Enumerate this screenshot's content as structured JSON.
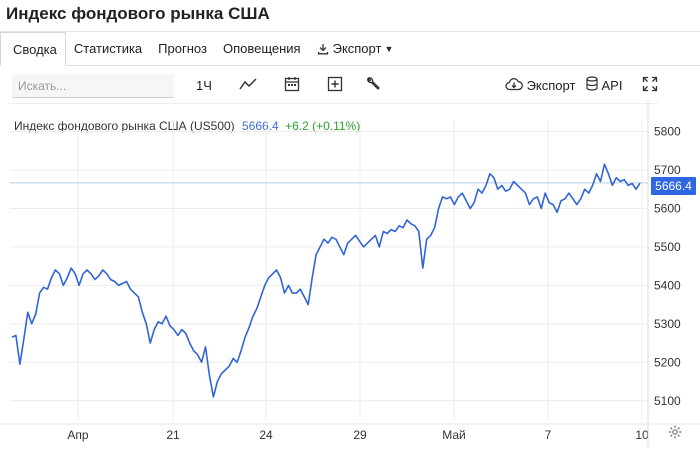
{
  "page": {
    "title": "Индекс фондового рынка США"
  },
  "tabs": [
    {
      "label": "Сводка",
      "active": true
    },
    {
      "label": "Статистика"
    },
    {
      "label": "Прогноз"
    },
    {
      "label": "Оповещения"
    },
    {
      "label": "Экспорт",
      "icon": "download-icon",
      "dropdown": true
    }
  ],
  "toolbar": {
    "search_placeholder": "Искать...",
    "interval_label": "1Ч",
    "chart_type_icon": "line-chart-icon",
    "date_range_icon": "calendar-icon",
    "add_compare_icon": "plus-box-icon",
    "settings_icon": "wrench-icon",
    "export_label": "Экспорт",
    "export_icon": "cloud-download-icon",
    "api_label": "API",
    "api_icon": "database-icon",
    "fullscreen_icon": "fullscreen-icon"
  },
  "legend": {
    "name": "Индекс фондового рынка США (US500)",
    "price": "5666.4",
    "change": "+6.2 (+0.11%)"
  },
  "price_tag": "5666.4",
  "colors": {
    "line": "#3064d8",
    "accent": "#2f67e0",
    "positive": "#2ea12e"
  },
  "chart_data": {
    "type": "line",
    "series": [
      {
        "values": [
          5265,
          5270,
          5195,
          5260,
          5330,
          5300,
          5325,
          5380,
          5395,
          5390,
          5420,
          5440,
          5430,
          5400,
          5420,
          5445,
          5430,
          5400,
          5430,
          5440,
          5430,
          5415,
          5425,
          5440,
          5430,
          5415,
          5410,
          5400,
          5405,
          5410,
          5390,
          5380,
          5370,
          5330,
          5300,
          5250,
          5285,
          5305,
          5300,
          5320,
          5295,
          5285,
          5270,
          5285,
          5275,
          5250,
          5230,
          5220,
          5200,
          5240,
          5165,
          5110,
          5150,
          5170,
          5180,
          5190,
          5210,
          5200,
          5230,
          5265,
          5290,
          5320,
          5340,
          5370,
          5400,
          5420,
          5430,
          5440,
          5420,
          5380,
          5400,
          5380,
          5380,
          5390,
          5370,
          5350,
          5420,
          5480,
          5500,
          5520,
          5510,
          5525,
          5520,
          5500,
          5480,
          5510,
          5520,
          5530,
          5515,
          5500,
          5510,
          5520,
          5530,
          5500,
          5540,
          5535,
          5545,
          5540,
          5555,
          5550,
          5570,
          5560,
          5555,
          5540,
          5445,
          5520,
          5530,
          5550,
          5600,
          5630,
          5625,
          5630,
          5610,
          5630,
          5640,
          5620,
          5600,
          5615,
          5650,
          5640,
          5660,
          5690,
          5680,
          5650,
          5660,
          5645,
          5650,
          5670,
          5660,
          5650,
          5640,
          5610,
          5625,
          5630,
          5600,
          5640,
          5615,
          5610,
          5590,
          5620,
          5625,
          5640,
          5625,
          5610,
          5625,
          5650,
          5640,
          5660,
          5690,
          5670,
          5715,
          5690,
          5660,
          5680,
          5670,
          5675,
          5660,
          5665,
          5650,
          5666
        ]
      }
    ],
    "x_ticks": [
      "Апр",
      "21",
      "24",
      "29",
      "Май",
      "7",
      "10"
    ],
    "y_ticks": [
      5100,
      5200,
      5300,
      5400,
      5500,
      5600,
      5700,
      5800
    ],
    "ylim": [
      5050,
      5830
    ],
    "reference_price": 5666.4,
    "grid": true
  }
}
